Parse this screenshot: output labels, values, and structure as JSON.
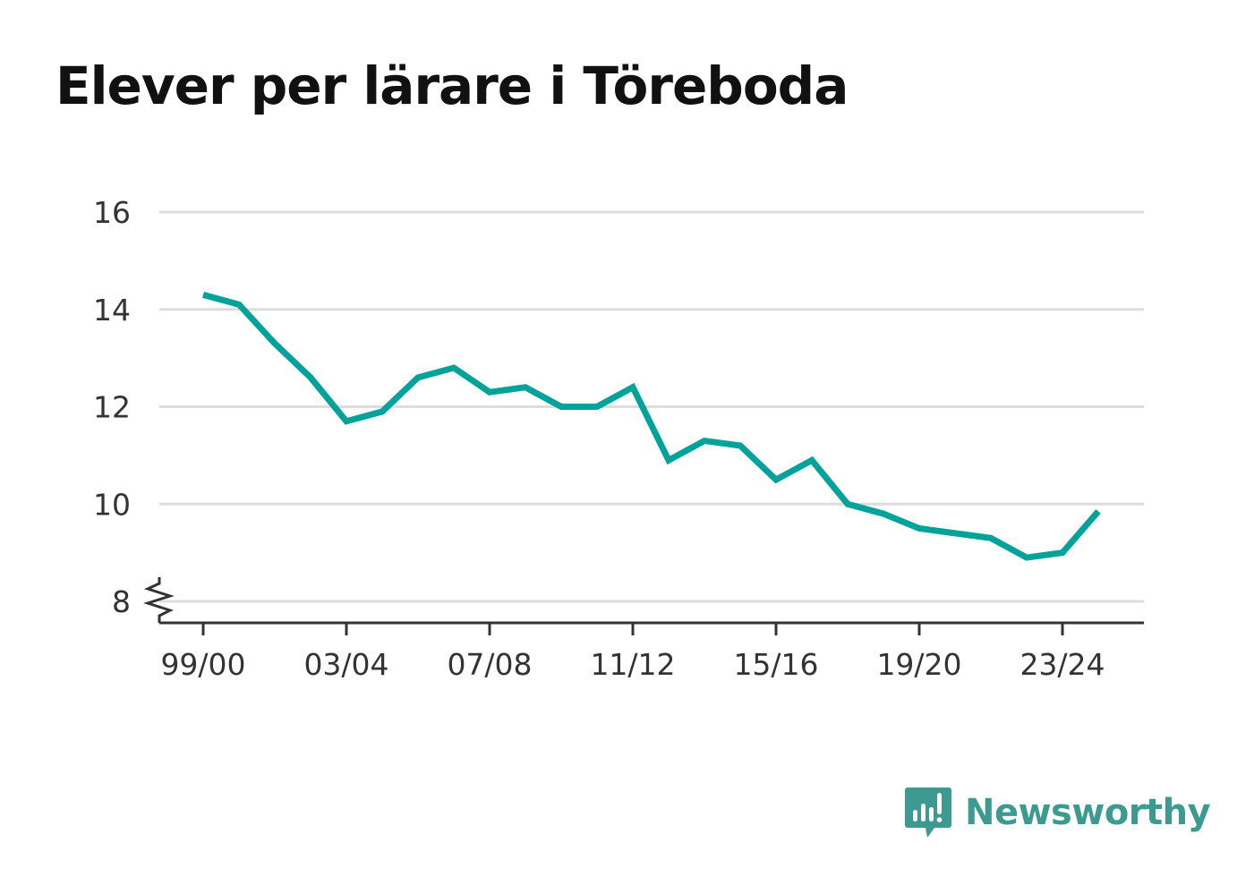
{
  "title": "Elever per lärare i Töreboda",
  "brand": {
    "name": "Newsworthy",
    "icon": "newsworthy-logo-icon"
  },
  "colors": {
    "line": "#00a39a",
    "grid": "#dddddd",
    "axis": "#333333",
    "text": "#333333",
    "brand": "#3d9a91"
  },
  "chart_data": {
    "type": "line",
    "title": "Elever per lärare i Töreboda",
    "xlabel": "",
    "ylabel": "",
    "ylim": [
      8,
      16
    ],
    "y_axis_broken": true,
    "grid": "horizontal",
    "yticks": [
      8,
      10,
      12,
      14,
      16
    ],
    "xtick_labels": [
      "99/00",
      "03/04",
      "07/08",
      "11/12",
      "15/16",
      "19/20",
      "23/24"
    ],
    "categories": [
      "99/00",
      "00/01",
      "01/02",
      "02/03",
      "03/04",
      "04/05",
      "05/06",
      "06/07",
      "07/08",
      "08/09",
      "09/10",
      "10/11",
      "11/12",
      "12/13",
      "13/14",
      "14/15",
      "15/16",
      "16/17",
      "17/18",
      "18/19",
      "19/20",
      "20/21",
      "21/22",
      "22/23",
      "23/24",
      "24/25"
    ],
    "series": [
      {
        "values": [
          14.3,
          14.1,
          13.3,
          12.6,
          11.7,
          11.9,
          12.6,
          12.8,
          12.3,
          12.4,
          12.0,
          12.0,
          12.4,
          10.9,
          11.3,
          11.2,
          10.5,
          10.9,
          10.0,
          9.8,
          9.5,
          9.4,
          9.3,
          8.9,
          9.0,
          9.85
        ]
      }
    ]
  }
}
